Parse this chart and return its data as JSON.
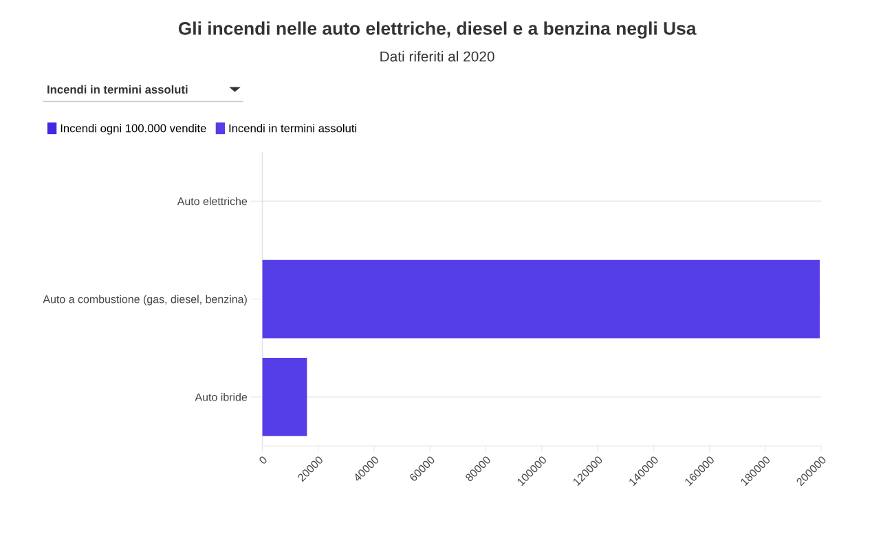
{
  "chart_data": {
    "type": "bar",
    "orientation": "horizontal",
    "title": "Gli incendi nelle auto elettriche, diesel e a benzina negli Usa",
    "subtitle": "Dati riferiti al 2020",
    "annotations": [
      "Incendi in termini assoluti"
    ],
    "categories": [
      "Auto elettriche",
      "Auto a combustione (gas, diesel, benzina)",
      "Auto ibride"
    ],
    "series": [
      {
        "name": "Incendi ogni 100.000 vendite",
        "color": "#4028e6",
        "values": [
          null,
          null,
          null
        ]
      },
      {
        "name": "Incendi in termini assoluti",
        "color": "#553de8",
        "values": [
          null,
          199500,
          16000
        ]
      }
    ],
    "xlim": [
      0,
      200000
    ],
    "xticks": [
      0,
      20000,
      40000,
      60000,
      80000,
      100000,
      120000,
      140000,
      160000,
      180000,
      200000
    ],
    "grid": "y",
    "legend": "top left"
  }
}
